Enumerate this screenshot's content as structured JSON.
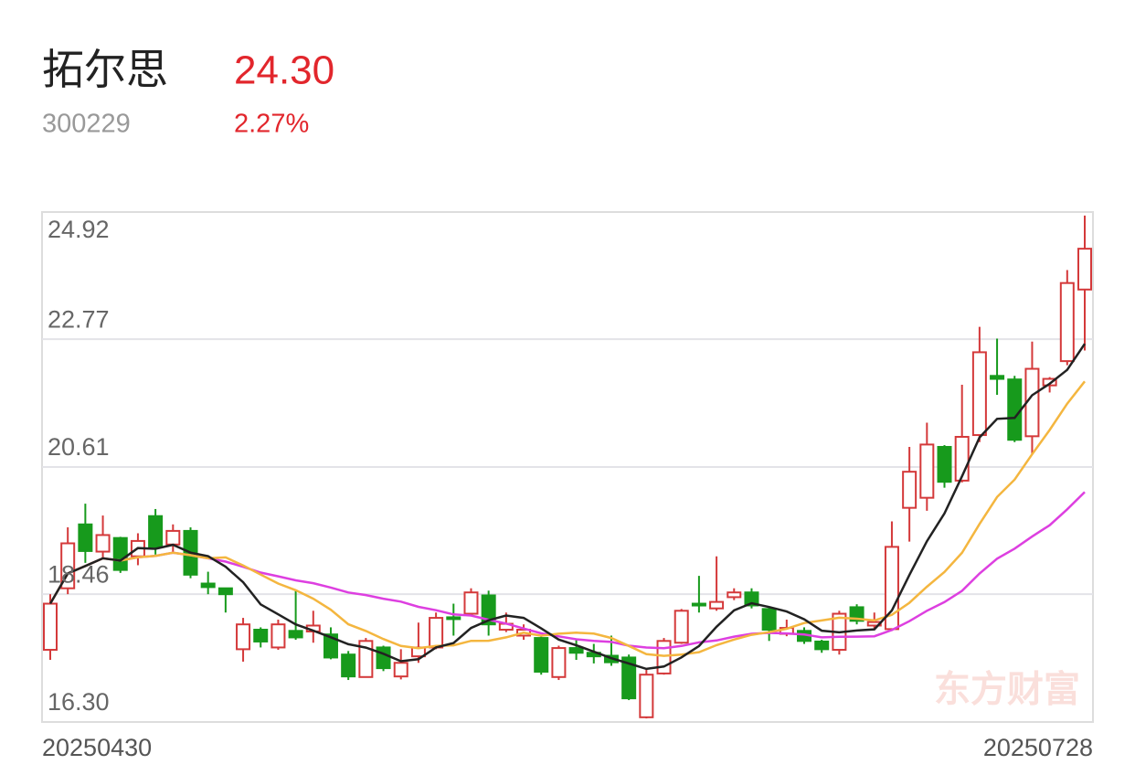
{
  "header": {
    "name": "拓尔思",
    "code": "300229",
    "price": "24.30",
    "change": "2.27%"
  },
  "chart_data": {
    "type": "candlestick",
    "watermark": "东方财富",
    "x": [
      "20250430",
      null,
      null,
      null,
      null,
      null,
      null,
      null,
      null,
      null,
      null,
      null,
      null,
      null,
      null,
      null,
      null,
      null,
      null,
      null,
      null,
      null,
      null,
      null,
      null,
      null,
      null,
      null,
      null,
      null,
      null,
      null,
      null,
      null,
      null,
      null,
      null,
      null,
      null,
      null,
      null,
      null,
      null,
      null,
      null,
      null,
      null,
      null,
      null,
      null,
      null,
      null,
      null,
      null,
      null,
      null,
      null,
      null,
      null,
      "20250728"
    ],
    "open": [
      17.52,
      18.56,
      19.64,
      19.18,
      19.41,
      19.1,
      19.78,
      19.3,
      19.53,
      18.64,
      18.56,
      17.53,
      17.86,
      17.56,
      17.84,
      17.83,
      17.78,
      17.44,
      17.06,
      17.56,
      17.07,
      17.41,
      17.56,
      18.07,
      18.13,
      18.44,
      17.86,
      17.76,
      17.72,
      17.06,
      17.55,
      17.47,
      17.42,
      17.39,
      16.38,
      17.12,
      17.64,
      18.3,
      18.22,
      18.41,
      18.49,
      18.21,
      17.79,
      17.84,
      17.66,
      17.52,
      18.24,
      17.93,
      17.87,
      19.92,
      20.09,
      20.95,
      20.38,
      21.15,
      22.15,
      22.09,
      21.13,
      21.99,
      22.4,
      23.61
    ],
    "high": [
      18.46,
      19.59,
      19.99,
      19.79,
      19.43,
      19.49,
      19.9,
      19.64,
      19.59,
      18.84,
      18.56,
      18.06,
      17.9,
      18.03,
      18.52,
      18.18,
      17.9,
      17.5,
      17.72,
      17.59,
      17.53,
      17.98,
      18.15,
      18.3,
      18.56,
      18.52,
      18.15,
      17.95,
      17.75,
      17.59,
      17.69,
      17.62,
      17.76,
      17.44,
      17.18,
      17.72,
      18.21,
      18.77,
      19.1,
      18.56,
      18.56,
      18.24,
      18.03,
      17.9,
      17.69,
      18.18,
      18.29,
      18.15,
      19.69,
      20.95,
      21.36,
      20.98,
      22.0,
      22.98,
      22.78,
      22.15,
      22.73,
      22.13,
      23.94,
      24.86
    ],
    "low": [
      17.35,
      18.46,
      18.99,
      19.07,
      18.82,
      18.95,
      19.13,
      19.15,
      18.73,
      18.46,
      18.15,
      17.32,
      17.56,
      17.52,
      17.69,
      17.64,
      17.36,
      17.01,
      17.06,
      17.16,
      17.02,
      17.3,
      17.53,
      17.76,
      18.09,
      17.76,
      17.82,
      17.69,
      17.1,
      17.01,
      17.35,
      17.29,
      17.25,
      16.67,
      16.36,
      17.1,
      17.62,
      18.15,
      18.18,
      18.36,
      18.22,
      17.67,
      17.75,
      17.62,
      17.47,
      17.44,
      17.95,
      17.87,
      17.84,
      19.35,
      19.87,
      20.26,
      20.35,
      21.03,
      21.83,
      21.03,
      20.83,
      21.87,
      22.33,
      22.58
    ],
    "close": [
      18.3,
      19.32,
      19.19,
      19.46,
      18.87,
      19.36,
      19.26,
      19.53,
      18.79,
      18.58,
      18.46,
      17.95,
      17.66,
      17.95,
      17.73,
      17.93,
      17.39,
      17.07,
      17.67,
      17.21,
      17.3,
      17.56,
      18.06,
      18.04,
      18.49,
      17.95,
      17.96,
      17.86,
      17.15,
      17.55,
      17.47,
      17.41,
      17.31,
      16.7,
      17.1,
      17.67,
      18.18,
      18.27,
      18.33,
      18.49,
      18.27,
      17.86,
      17.89,
      17.67,
      17.53,
      18.13,
      18.01,
      17.99,
      19.26,
      20.53,
      20.99,
      20.36,
      21.12,
      22.55,
      22.1,
      21.07,
      22.27,
      22.1,
      23.72,
      24.3
    ],
    "up_color": "#d4393a",
    "down_color": "#179a1c",
    "moving_averages": [
      {
        "period": 20,
        "color": "#dd3fe0"
      },
      {
        "period": 10,
        "color": "#f4b63f"
      },
      {
        "period": 5,
        "color": "#222222"
      }
    ],
    "ylim": [
      16.3,
      24.92
    ],
    "yticks": [
      16.3,
      18.46,
      20.61,
      22.77,
      24.92
    ],
    "grid": true
  }
}
